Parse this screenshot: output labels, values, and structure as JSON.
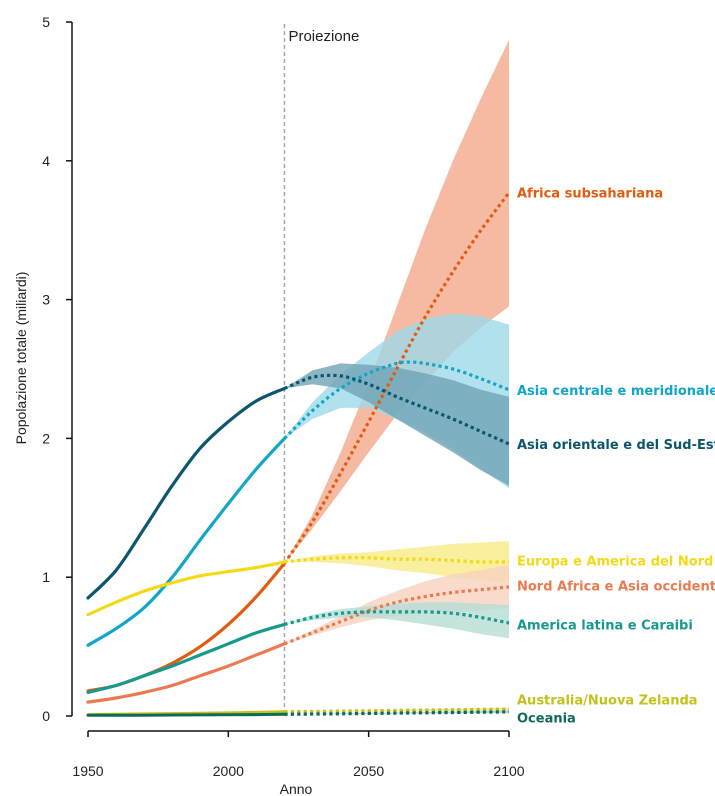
{
  "chart_data": {
    "type": "line",
    "xlabel": "Anno",
    "ylabel": "Popolazione totale (miliardi)",
    "xlim": [
      1950,
      2100
    ],
    "ylim": [
      0,
      5
    ],
    "x_ticks": [
      1950,
      2000,
      2050,
      2100
    ],
    "y_ticks": [
      0,
      1,
      2,
      3,
      4,
      5
    ],
    "projection_start": 2020,
    "projection_label": "Proiezione",
    "series": [
      {
        "name": "Africa subsahariana",
        "color": "#e25b10",
        "band_color": "#f2a98a",
        "observed": [
          [
            1950,
            0.18
          ],
          [
            1960,
            0.22
          ],
          [
            1970,
            0.29
          ],
          [
            1980,
            0.38
          ],
          [
            1990,
            0.5
          ],
          [
            2000,
            0.66
          ],
          [
            2010,
            0.86
          ],
          [
            2020,
            1.1
          ]
        ],
        "projected": [
          [
            2020,
            1.1
          ],
          [
            2030,
            1.4
          ],
          [
            2040,
            1.75
          ],
          [
            2050,
            2.12
          ],
          [
            2060,
            2.5
          ],
          [
            2070,
            2.87
          ],
          [
            2080,
            3.2
          ],
          [
            2090,
            3.5
          ],
          [
            2100,
            3.77
          ]
        ],
        "band_low": [
          [
            2020,
            1.1
          ],
          [
            2030,
            1.35
          ],
          [
            2040,
            1.62
          ],
          [
            2050,
            1.9
          ],
          [
            2060,
            2.17
          ],
          [
            2070,
            2.4
          ],
          [
            2080,
            2.62
          ],
          [
            2090,
            2.8
          ],
          [
            2100,
            2.95
          ]
        ],
        "band_high": [
          [
            2020,
            1.1
          ],
          [
            2030,
            1.45
          ],
          [
            2040,
            1.9
          ],
          [
            2050,
            2.4
          ],
          [
            2060,
            2.95
          ],
          [
            2070,
            3.5
          ],
          [
            2080,
            4.0
          ],
          [
            2090,
            4.45
          ],
          [
            2100,
            4.87
          ]
        ]
      },
      {
        "name": "Asia centrale e meridionale",
        "color": "#12a6c9",
        "band_color": "#9fd9ea",
        "observed": [
          [
            1950,
            0.51
          ],
          [
            1960,
            0.63
          ],
          [
            1970,
            0.78
          ],
          [
            1980,
            1.0
          ],
          [
            1990,
            1.27
          ],
          [
            2000,
            1.53
          ],
          [
            2010,
            1.78
          ],
          [
            2020,
            2.0
          ]
        ],
        "projected": [
          [
            2020,
            2.0
          ],
          [
            2030,
            2.2
          ],
          [
            2040,
            2.36
          ],
          [
            2050,
            2.47
          ],
          [
            2060,
            2.54
          ],
          [
            2065,
            2.55
          ],
          [
            2070,
            2.54
          ],
          [
            2080,
            2.5
          ],
          [
            2090,
            2.43
          ],
          [
            2100,
            2.35
          ]
        ],
        "band_low": [
          [
            2020,
            2.0
          ],
          [
            2030,
            2.14
          ],
          [
            2040,
            2.22
          ],
          [
            2050,
            2.22
          ],
          [
            2060,
            2.14
          ],
          [
            2070,
            2.04
          ],
          [
            2080,
            1.92
          ],
          [
            2090,
            1.78
          ],
          [
            2100,
            1.64
          ]
        ],
        "band_high": [
          [
            2020,
            2.0
          ],
          [
            2030,
            2.26
          ],
          [
            2040,
            2.46
          ],
          [
            2050,
            2.62
          ],
          [
            2060,
            2.77
          ],
          [
            2070,
            2.86
          ],
          [
            2080,
            2.9
          ],
          [
            2090,
            2.88
          ],
          [
            2100,
            2.82
          ]
        ]
      },
      {
        "name": "Asia orientale e del Sud-Est",
        "color": "#0c566e",
        "band_color": "#6fa4b4",
        "observed": [
          [
            1950,
            0.85
          ],
          [
            1960,
            1.05
          ],
          [
            1970,
            1.35
          ],
          [
            1980,
            1.66
          ],
          [
            1990,
            1.93
          ],
          [
            2000,
            2.12
          ],
          [
            2010,
            2.27
          ],
          [
            2020,
            2.36
          ]
        ],
        "projected": [
          [
            2020,
            2.36
          ],
          [
            2030,
            2.44
          ],
          [
            2040,
            2.45
          ],
          [
            2050,
            2.39
          ],
          [
            2060,
            2.3
          ],
          [
            2070,
            2.22
          ],
          [
            2080,
            2.14
          ],
          [
            2090,
            2.05
          ],
          [
            2100,
            1.96
          ]
        ],
        "band_low": [
          [
            2020,
            2.36
          ],
          [
            2030,
            2.39
          ],
          [
            2040,
            2.36
          ],
          [
            2050,
            2.26
          ],
          [
            2060,
            2.14
          ],
          [
            2070,
            2.02
          ],
          [
            2080,
            1.9
          ],
          [
            2090,
            1.77
          ],
          [
            2100,
            1.66
          ]
        ],
        "band_high": [
          [
            2020,
            2.36
          ],
          [
            2030,
            2.49
          ],
          [
            2040,
            2.54
          ],
          [
            2050,
            2.53
          ],
          [
            2060,
            2.51
          ],
          [
            2070,
            2.47
          ],
          [
            2080,
            2.42
          ],
          [
            2090,
            2.35
          ],
          [
            2100,
            2.3
          ]
        ]
      },
      {
        "name": "Europa e America del Nord",
        "color": "#f3da16",
        "band_color": "#f8eb86",
        "observed": [
          [
            1950,
            0.73
          ],
          [
            1960,
            0.82
          ],
          [
            1970,
            0.9
          ],
          [
            1980,
            0.96
          ],
          [
            1990,
            1.01
          ],
          [
            2000,
            1.04
          ],
          [
            2010,
            1.07
          ],
          [
            2020,
            1.11
          ]
        ],
        "projected": [
          [
            2020,
            1.11
          ],
          [
            2030,
            1.13
          ],
          [
            2040,
            1.14
          ],
          [
            2050,
            1.14
          ],
          [
            2060,
            1.13
          ],
          [
            2070,
            1.13
          ],
          [
            2080,
            1.12
          ],
          [
            2090,
            1.11
          ],
          [
            2100,
            1.11
          ]
        ],
        "band_low": [
          [
            2020,
            1.11
          ],
          [
            2030,
            1.11
          ],
          [
            2040,
            1.1
          ],
          [
            2050,
            1.08
          ],
          [
            2060,
            1.05
          ],
          [
            2070,
            1.03
          ],
          [
            2080,
            1.0
          ],
          [
            2090,
            0.98
          ],
          [
            2100,
            0.96
          ]
        ],
        "band_high": [
          [
            2020,
            1.11
          ],
          [
            2030,
            1.15
          ],
          [
            2040,
            1.17
          ],
          [
            2050,
            1.18
          ],
          [
            2060,
            1.2
          ],
          [
            2070,
            1.22
          ],
          [
            2080,
            1.24
          ],
          [
            2090,
            1.25
          ],
          [
            2100,
            1.26
          ]
        ]
      },
      {
        "name": "Nord Africa e Asia occidentale",
        "color": "#ec7a51",
        "band_color": "#f8d2bf",
        "observed": [
          [
            1950,
            0.1
          ],
          [
            1960,
            0.13
          ],
          [
            1970,
            0.17
          ],
          [
            1980,
            0.22
          ],
          [
            1990,
            0.29
          ],
          [
            2000,
            0.36
          ],
          [
            2010,
            0.44
          ],
          [
            2020,
            0.52
          ]
        ],
        "projected": [
          [
            2020,
            0.52
          ],
          [
            2030,
            0.6
          ],
          [
            2040,
            0.68
          ],
          [
            2050,
            0.76
          ],
          [
            2060,
            0.82
          ],
          [
            2070,
            0.86
          ],
          [
            2080,
            0.89
          ],
          [
            2090,
            0.91
          ],
          [
            2100,
            0.93
          ]
        ],
        "band_low": [
          [
            2020,
            0.52
          ],
          [
            2030,
            0.58
          ],
          [
            2040,
            0.64
          ],
          [
            2050,
            0.69
          ],
          [
            2060,
            0.72
          ],
          [
            2070,
            0.74
          ],
          [
            2080,
            0.75
          ],
          [
            2090,
            0.76
          ],
          [
            2100,
            0.78
          ]
        ],
        "band_high": [
          [
            2020,
            0.52
          ],
          [
            2030,
            0.62
          ],
          [
            2040,
            0.72
          ],
          [
            2050,
            0.82
          ],
          [
            2060,
            0.9
          ],
          [
            2070,
            0.97
          ],
          [
            2080,
            1.02
          ],
          [
            2090,
            1.05
          ],
          [
            2100,
            1.09
          ]
        ]
      },
      {
        "name": "America latina e Caraibi",
        "color": "#159a8d",
        "band_color": "#b6ddd6",
        "observed": [
          [
            1950,
            0.17
          ],
          [
            1960,
            0.22
          ],
          [
            1970,
            0.29
          ],
          [
            1980,
            0.36
          ],
          [
            1990,
            0.44
          ],
          [
            2000,
            0.52
          ],
          [
            2010,
            0.6
          ],
          [
            2020,
            0.66
          ]
        ],
        "projected": [
          [
            2020,
            0.66
          ],
          [
            2030,
            0.71
          ],
          [
            2040,
            0.74
          ],
          [
            2050,
            0.75
          ],
          [
            2060,
            0.75
          ],
          [
            2070,
            0.75
          ],
          [
            2080,
            0.74
          ],
          [
            2090,
            0.71
          ],
          [
            2100,
            0.67
          ]
        ],
        "band_low": [
          [
            2020,
            0.66
          ],
          [
            2030,
            0.69
          ],
          [
            2040,
            0.71
          ],
          [
            2050,
            0.71
          ],
          [
            2060,
            0.69
          ],
          [
            2070,
            0.66
          ],
          [
            2080,
            0.63
          ],
          [
            2090,
            0.59
          ],
          [
            2100,
            0.56
          ]
        ],
        "band_high": [
          [
            2020,
            0.66
          ],
          [
            2030,
            0.73
          ],
          [
            2040,
            0.77
          ],
          [
            2050,
            0.79
          ],
          [
            2060,
            0.81
          ],
          [
            2070,
            0.82
          ],
          [
            2080,
            0.82
          ],
          [
            2090,
            0.81
          ],
          [
            2100,
            0.8
          ]
        ]
      },
      {
        "name": "Australia/Nuova Zelanda",
        "color": "#c3c21a",
        "band_color": "#e6e59a",
        "observed": [
          [
            1950,
            0.01
          ],
          [
            1970,
            0.015
          ],
          [
            1990,
            0.02
          ],
          [
            2010,
            0.026
          ],
          [
            2020,
            0.03
          ]
        ],
        "projected": [
          [
            2020,
            0.03
          ],
          [
            2040,
            0.035
          ],
          [
            2060,
            0.04
          ],
          [
            2080,
            0.045
          ],
          [
            2100,
            0.05
          ]
        ],
        "band_low": [
          [
            2020,
            0.03
          ],
          [
            2060,
            0.035
          ],
          [
            2100,
            0.038
          ]
        ],
        "band_high": [
          [
            2020,
            0.03
          ],
          [
            2060,
            0.045
          ],
          [
            2100,
            0.06
          ]
        ]
      },
      {
        "name": "Oceania",
        "color": "#0f6a5c",
        "band_color": "#9cc8bf",
        "observed": [
          [
            1950,
            0.005
          ],
          [
            1970,
            0.006
          ],
          [
            1990,
            0.008
          ],
          [
            2010,
            0.01
          ],
          [
            2020,
            0.012
          ]
        ],
        "projected": [
          [
            2020,
            0.012
          ],
          [
            2040,
            0.016
          ],
          [
            2060,
            0.021
          ],
          [
            2080,
            0.025
          ],
          [
            2100,
            0.03
          ]
        ],
        "band_low": [
          [
            2020,
            0.012
          ],
          [
            2060,
            0.017
          ],
          [
            2100,
            0.022
          ]
        ],
        "band_high": [
          [
            2020,
            0.012
          ],
          [
            2060,
            0.025
          ],
          [
            2100,
            0.038
          ]
        ]
      }
    ]
  }
}
